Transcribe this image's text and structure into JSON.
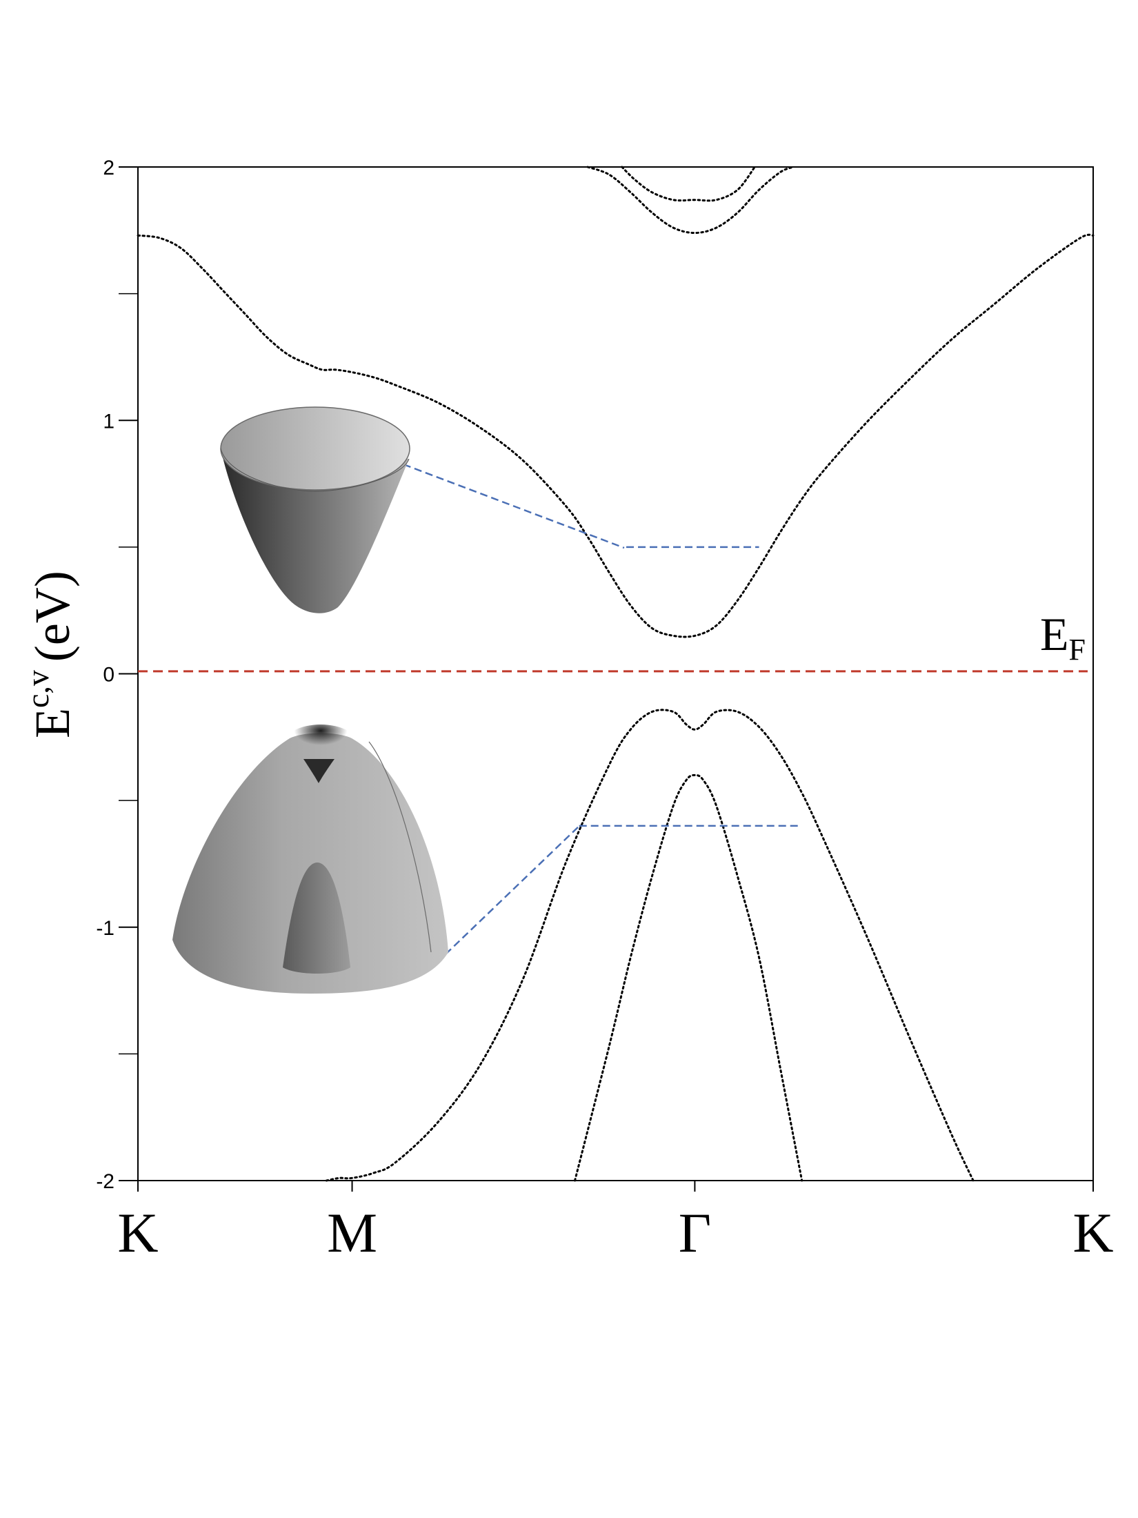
{
  "chart_data": {
    "type": "line",
    "title": "",
    "ylabel": {
      "main": "E",
      "superscript": "c,v",
      "unit": "(eV)"
    },
    "xlabel": "",
    "ylim": [
      -2,
      2
    ],
    "y_ticks": [
      {
        "value": 2,
        "label": "2"
      },
      {
        "value": 1,
        "label": "1"
      },
      {
        "value": 0,
        "label": "0"
      },
      {
        "value": -1,
        "label": "-1"
      },
      {
        "value": -2,
        "label": "-2"
      }
    ],
    "y_minor_ticks": [
      1.5,
      0.5,
      -0.5,
      -1.5
    ],
    "k_points": [
      {
        "label": "K",
        "x": 0
      },
      {
        "label": "M",
        "x": 0.5
      },
      {
        "label": "Γ",
        "x": 1.3
      },
      {
        "label": "K",
        "x": 2.23
      }
    ],
    "xlim": [
      0,
      2.23
    ],
    "fermi_level": {
      "value": 0.01,
      "label": "E",
      "subscript": "F",
      "color": "#c0392b"
    },
    "connector_color": "#4a6fb5",
    "curve_color": "#000000",
    "series": [
      {
        "x": [
          0,
          0.05,
          0.1,
          0.15,
          0.2,
          0.25,
          0.3,
          0.35,
          0.4,
          0.43,
          0.46,
          0.5,
          0.55,
          0.6,
          0.7,
          0.8,
          0.9,
          1.0,
          1.05,
          1.1,
          1.15,
          1.2,
          1.25,
          1.3,
          1.35,
          1.4,
          1.45,
          1.5,
          1.55,
          1.6,
          1.7,
          1.8,
          1.9,
          2.0,
          2.1,
          2.2,
          2.23
        ],
        "values": [
          1.73,
          1.72,
          1.68,
          1.6,
          1.51,
          1.42,
          1.33,
          1.26,
          1.22,
          1.2,
          1.2,
          1.19,
          1.17,
          1.14,
          1.07,
          0.97,
          0.84,
          0.66,
          0.54,
          0.4,
          0.27,
          0.18,
          0.15,
          0.15,
          0.19,
          0.29,
          0.42,
          0.56,
          0.69,
          0.8,
          0.99,
          1.16,
          1.32,
          1.46,
          1.6,
          1.72,
          1.73
        ]
      },
      {
        "x": [
          1.05,
          1.1,
          1.15,
          1.2,
          1.25,
          1.3,
          1.35,
          1.4,
          1.45,
          1.5,
          1.53
        ],
        "values": [
          2.0,
          1.97,
          1.9,
          1.82,
          1.76,
          1.74,
          1.76,
          1.82,
          1.91,
          1.98,
          2.0
        ]
      },
      {
        "x": [
          1.13,
          1.16,
          1.2,
          1.25,
          1.3,
          1.35,
          1.4,
          1.44
        ],
        "values": [
          2.0,
          1.95,
          1.9,
          1.87,
          1.87,
          1.87,
          1.91,
          2.0
        ]
      },
      {
        "x": [
          0.44,
          0.47,
          0.5,
          0.55,
          0.6,
          0.7,
          0.8,
          0.9,
          1.0,
          1.1,
          1.15,
          1.2,
          1.25,
          1.28,
          1.3,
          1.32,
          1.35,
          1.4,
          1.45,
          1.5,
          1.55,
          1.6,
          1.7,
          1.8,
          1.9,
          1.95
        ],
        "values": [
          -2.0,
          -1.99,
          -1.99,
          -1.97,
          -1.93,
          -1.77,
          -1.54,
          -1.2,
          -0.74,
          -0.36,
          -0.22,
          -0.15,
          -0.15,
          -0.2,
          -0.22,
          -0.2,
          -0.15,
          -0.15,
          -0.21,
          -0.32,
          -0.47,
          -0.65,
          -1.03,
          -1.43,
          -1.82,
          -2.0
        ]
      },
      {
        "x": [
          1.02,
          1.1,
          1.15,
          1.2,
          1.25,
          1.28,
          1.3,
          1.32,
          1.35,
          1.4,
          1.45,
          1.5,
          1.55
        ],
        "values": [
          -2.0,
          -1.47,
          -1.12,
          -0.8,
          -0.52,
          -0.42,
          -0.4,
          -0.42,
          -0.52,
          -0.8,
          -1.12,
          -1.56,
          -2.0
        ]
      }
    ],
    "constant_energy_cuts": [
      {
        "energy": 0.5,
        "x_from": 1.14,
        "x_to": 1.45
      },
      {
        "energy": -0.6,
        "x_from": 1.03,
        "x_to": 1.55
      }
    ]
  },
  "insets": [
    {
      "name": "conduction-band-paraboloid-inset",
      "kind": "upward-cone",
      "shading": "#444444"
    },
    {
      "name": "valence-band-dome-inset",
      "kind": "downward-dome",
      "shading": "#888888"
    }
  ]
}
